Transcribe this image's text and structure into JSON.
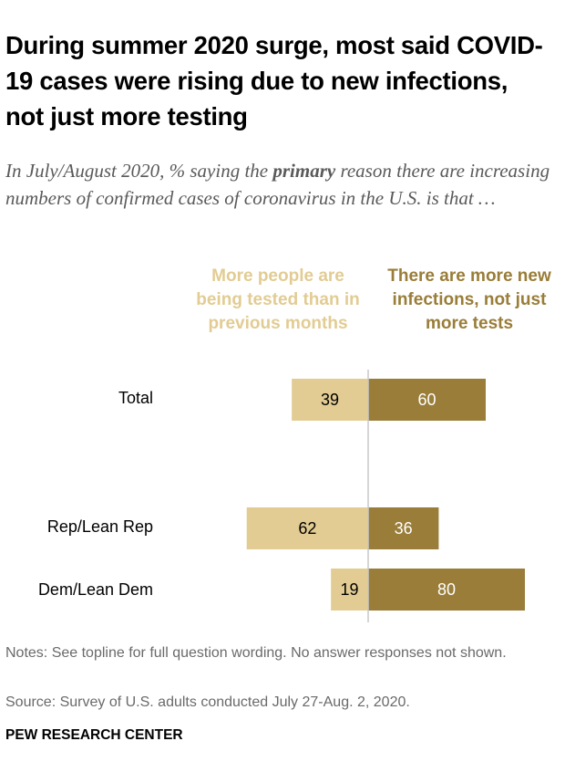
{
  "title": "During summer 2020 surge, most said COVID-19 cases were rising due to new infections, not just more testing",
  "subtitle": {
    "before": "In July/August 2020, % saying the ",
    "emphasis": "primary",
    "after": " reason there are increasing numbers of confirmed cases of coronavirus in the U.S. is that …"
  },
  "notes": "Notes: See topline for full question wording. No answer responses not shown.",
  "source": "Source: Survey of U.S. adults conducted July 27-Aug. 2, 2020.",
  "brand": "PEW RESEARCH CENTER",
  "colors": {
    "tested": "#e2cc93",
    "infections": "#997d38",
    "axis": "#c8c8c8",
    "text_dark": "#000000",
    "text_light": "#ffffff"
  },
  "chart_data": {
    "type": "bar",
    "orientation": "diverging-horizontal",
    "title": "During summer 2020 surge, most said COVID-19 cases were rising due to new infections, not just more testing",
    "categories": [
      "Total",
      "Rep/Lean Rep",
      "Dem/Lean Dem"
    ],
    "series": [
      {
        "name": "More people are being tested than in previous months",
        "direction": "left",
        "values": [
          39,
          62,
          19
        ]
      },
      {
        "name": "There are more new infections, not just more tests",
        "direction": "right",
        "values": [
          60,
          36,
          80
        ]
      }
    ],
    "xlabel": "",
    "ylabel": "",
    "xlim": [
      -100,
      100
    ],
    "grid": false,
    "legend_position": "top"
  }
}
